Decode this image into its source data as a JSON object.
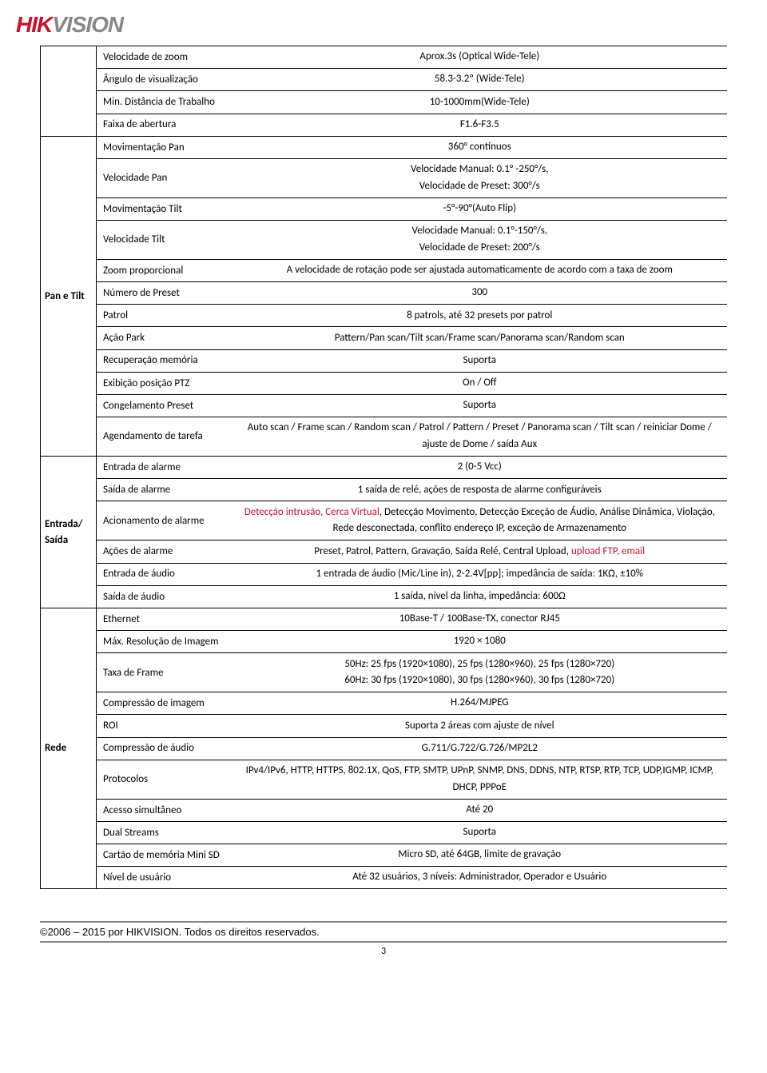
{
  "logo": {
    "hik": "HIK",
    "vision": "VISION"
  },
  "top_rows": [
    {
      "attr": "Velocidade de zoom",
      "val": "Aprox.3s (Optical Wide-Tele)"
    },
    {
      "attr": "Ângulo de visualização",
      "val": "58.3-3.2º (Wide-Tele)"
    },
    {
      "attr": "Min. Distância de Trabalho",
      "val": "10-1000mm(Wide-Tele)"
    },
    {
      "attr": "Faixa de abertura",
      "val": "F1.6-F3.5"
    }
  ],
  "pan_tilt": {
    "label": "Pan e Tilt",
    "rows": [
      {
        "attr": "Movimentação Pan",
        "val": "360° contínuos"
      },
      {
        "attr": "Velocidade Pan",
        "val": "Velocidade Manual: 0.1° -250°/s,\nVelocidade de Preset: 300°/s"
      },
      {
        "attr": "Movimentação Tilt",
        "val": "-5°-90°(Auto Flip)"
      },
      {
        "attr": "Velocidade Tilt",
        "val": "Velocidade Manual: 0.1°-150°/s,\nVelocidade de Preset: 200°/s"
      },
      {
        "attr": "Zoom proporcional",
        "val": "A velocidade de rotação pode ser ajustada automaticamente de acordo com a taxa de zoom"
      },
      {
        "attr": "Número de Preset",
        "val": "300"
      },
      {
        "attr": "Patrol",
        "val": "8 patrols, até 32 presets por patrol"
      },
      {
        "attr": "Ação Park",
        "val": "Pattern/Pan scan/Tilt scan/Frame scan/Panorama scan/Random scan"
      },
      {
        "attr": "Recuperação memória",
        "val": "Suporta"
      },
      {
        "attr": "Exibição posição PTZ",
        "val": "On / Off"
      },
      {
        "attr": "Congelamento Preset",
        "val": "Suporta"
      },
      {
        "attr": "Agendamento de tarefa",
        "val": "Auto scan / Frame scan / Random scan / Patrol / Pattern / Preset / Panorama scan / Tilt scan / reiniciar Dome /    ajuste de Dome / saída Aux"
      }
    ]
  },
  "io": {
    "label": "Entrada/\nSaída",
    "rows": [
      {
        "attr": "Entrada de alarme",
        "val": "2 (0-5 Vcc)"
      },
      {
        "attr": "Saída de alarme",
        "val": "1 saída de relé, ações de resposta de alarme configuráveis"
      },
      {
        "attr": "Acionamento de alarme",
        "val_html": "<span class='red-text'>Detecção intrusão, Cerca Virtual</span>, Detecção Movimento, Detecção Exceção de Áudio, Análise Dinâmica, Violação, Rede desconectada, conflito endereço IP, exceção de Armazenamento"
      },
      {
        "attr": "Ações de alarme",
        "val_html": "Preset, Patrol, Pattern, Gravação, Saída Relé, Central Upload, <span class='red-text'>upload FTP, email</span>"
      },
      {
        "attr": "Entrada de áudio",
        "val": "1 entrada de áudio (Mic/Line in), 2-2.4V[pp]; impedância de saída: 1KΩ, ±10%"
      },
      {
        "attr": "Saída de áudio",
        "val": "1 saída, nivel da linha, impedância: 600Ω"
      }
    ]
  },
  "rede": {
    "label": "Rede",
    "rows": [
      {
        "attr": "Ethernet",
        "val": "10Base-T / 100Base-TX, conector RJ45"
      },
      {
        "attr": "Máx. Resolução de Imagem",
        "val": "1920 × 1080"
      },
      {
        "attr": "Taxa de Frame",
        "val": "50Hz: 25 fps (1920×1080), 25 fps (1280×960), 25 fps (1280×720)\n60Hz: 30 fps (1920×1080), 30 fps (1280×960), 30 fps (1280×720)"
      },
      {
        "attr": "Compressão de imagem",
        "val": "H.264/MJPEG"
      },
      {
        "attr": "ROI",
        "val": "Suporta 2 áreas com ajuste de nível"
      },
      {
        "attr": "Compressão de áudio",
        "val": "G.711/G.722/G.726/MP2L2"
      },
      {
        "attr": "Protocolos",
        "val": "IPv4/IPv6, HTTP, HTTPS, 802.1X, QoS, FTP, SMTP, UPnP, SNMP, DNS, DDNS, NTP, RTSP, RTP, TCP, UDP,IGMP, ICMP, DHCP, PPPoE"
      },
      {
        "attr": "Acesso simultâneo",
        "val": "Até 20"
      },
      {
        "attr": "Dual Streams",
        "val": "Suporta"
      },
      {
        "attr": "Cartão de memória Mini SD",
        "val": "Micro SD, até 64GB, limite de gravação"
      },
      {
        "attr": "Nível de usuário",
        "val": "Até 32 usuários, 3 níveis: Administrador, Operador e Usuário"
      }
    ]
  },
  "footer": "©2006 – 2015 por HIKVISION. Todos os direitos reservados.",
  "page_num": "3"
}
